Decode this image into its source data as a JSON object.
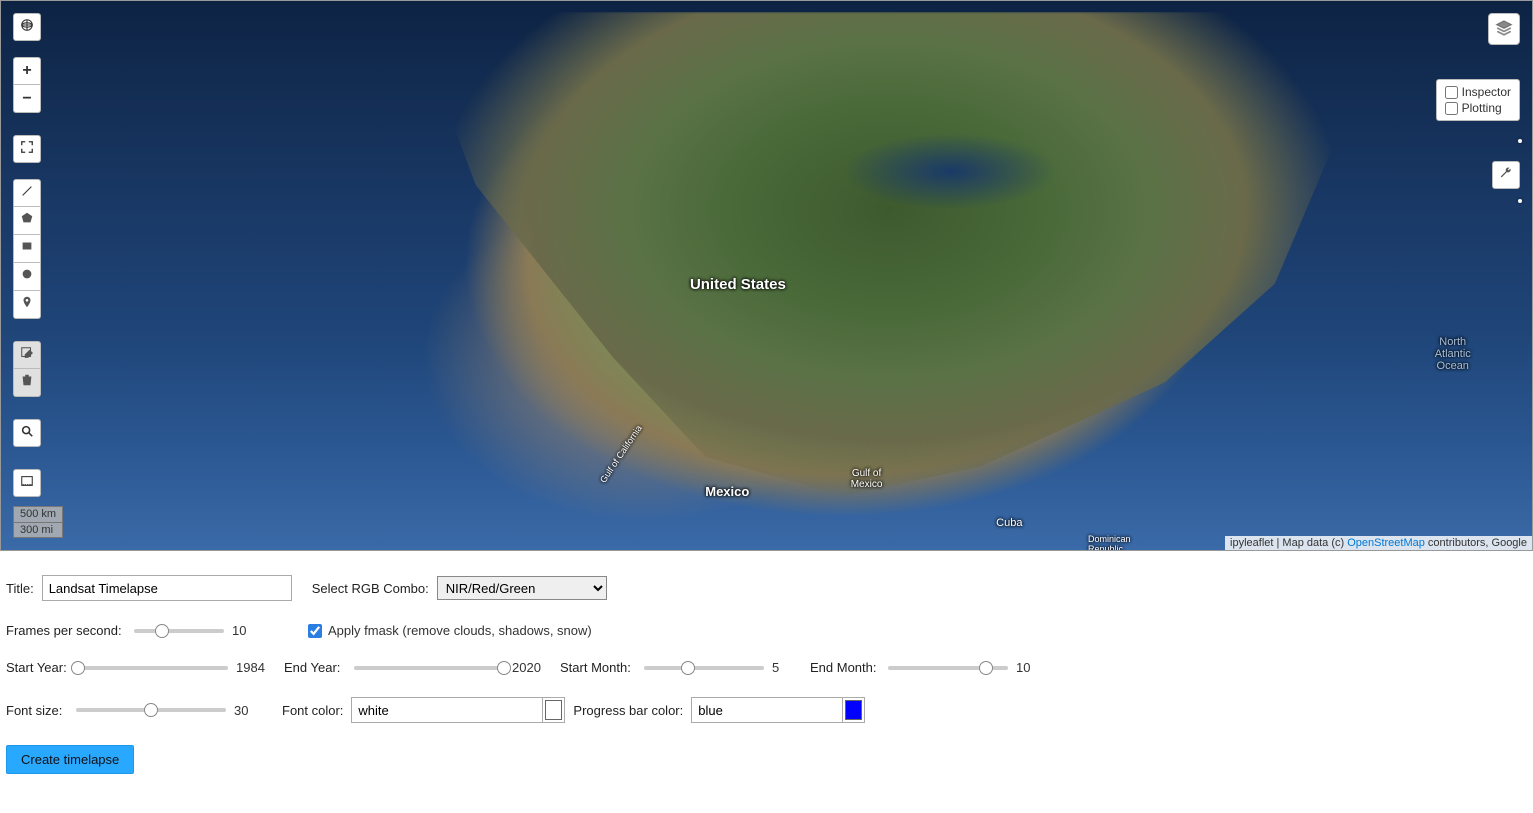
{
  "map": {
    "labels": {
      "us": "United States",
      "mexico": "Mexico",
      "cuba": "Cuba",
      "gulf_mexico": "Gulf of\nMexico",
      "gulf_california": "Gulf of California",
      "dominican": "Dominican\nRepublic",
      "north_atlantic": "North\nAtlantic\nOcean"
    },
    "scale": {
      "km": "500 km",
      "mi": "300 mi"
    },
    "attribution": {
      "prefix": "ipyleaflet | Map data (c) ",
      "osm": "OpenStreetMap",
      "suffix": " contributors, Google"
    },
    "toggles": {
      "inspector_label": "Inspector",
      "inspector_checked": false,
      "plotting_label": "Plotting",
      "plotting_checked": false
    }
  },
  "form": {
    "title_label": "Title:",
    "title_value": "Landsat Timelapse",
    "rgb_label": "Select RGB Combo:",
    "rgb_value": "NIR/Red/Green",
    "fps_label": "Frames per second:",
    "fps": {
      "min": 1,
      "max": 30,
      "value": 10
    },
    "fmask_label": "Apply fmask (remove clouds, shadows, snow)",
    "fmask_checked": true,
    "start_year_label": "Start Year:",
    "start_year": {
      "min": 1984,
      "max": 2020,
      "value": 1984
    },
    "end_year_label": "End Year:",
    "end_year": {
      "min": 1984,
      "max": 2020,
      "value": 2020
    },
    "start_month_label": "Start Month:",
    "start_month": {
      "min": 1,
      "max": 12,
      "value": 5
    },
    "end_month_label": "End Month:",
    "end_month": {
      "min": 1,
      "max": 12,
      "value": 10
    },
    "font_size_label": "Font size:",
    "font_size": {
      "min": 10,
      "max": 50,
      "value": 30
    },
    "font_color_label": "Font color:",
    "font_color_value": "white",
    "font_color_hex": "#ffffff",
    "progress_color_label": "Progress bar color:",
    "progress_color_value": "blue",
    "progress_color_hex": "#0000ff",
    "submit_label": "Create timelapse"
  }
}
